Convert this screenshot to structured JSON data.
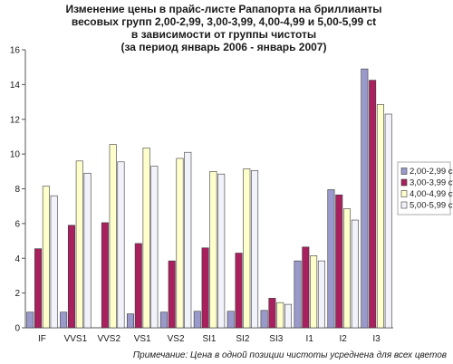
{
  "chart_data": {
    "type": "bar",
    "title_lines": [
      "Изменение цены в прайс-листе Рапапорта на бриллианты",
      "весовых групп 2,00-2,99, 3,00-3,99, 4,00-4,99 и 5,00-5,99 ct",
      "в зависимости от группы чистоты",
      "(за период январь 2006 - январь 2007)"
    ],
    "xlabel": "",
    "ylabel": "",
    "categories": [
      "IF",
      "VVS1",
      "VVS2",
      "VS1",
      "VS2",
      "SI1",
      "SI2",
      "SI3",
      "I1",
      "I2",
      "I3"
    ],
    "ylim": [
      0,
      16
    ],
    "yticks": [
      "0",
      "2",
      "4",
      "6",
      "8",
      "10",
      "12",
      "14",
      "16"
    ],
    "grid": false,
    "legend_position": "right",
    "series": [
      {
        "name": "2,00-2,99 ct",
        "color": "#9999cc",
        "values": [
          0.9,
          0.9,
          0.0,
          0.8,
          0.9,
          0.95,
          0.95,
          1.0,
          3.85,
          7.95,
          14.9
        ]
      },
      {
        "name": "3,00-3,99 ct",
        "color": "#a8205e",
        "values": [
          4.55,
          5.9,
          6.05,
          4.85,
          3.85,
          4.6,
          4.3,
          1.7,
          4.65,
          7.65,
          14.25
        ]
      },
      {
        "name": "4,00-4,99 ct",
        "color": "#ffffcc",
        "values": [
          8.15,
          9.6,
          10.55,
          10.35,
          9.75,
          9.0,
          9.15,
          1.45,
          4.15,
          6.85,
          12.85
        ]
      },
      {
        "name": "5,00-5,99 ct",
        "color": "#f2f2fa",
        "values": [
          7.6,
          8.9,
          9.55,
          9.3,
          10.1,
          8.85,
          9.05,
          1.35,
          3.85,
          6.2,
          12.3
        ]
      }
    ],
    "note": "Примечание: Цена в одной позиции чистоты усреднена для всех цветов"
  }
}
